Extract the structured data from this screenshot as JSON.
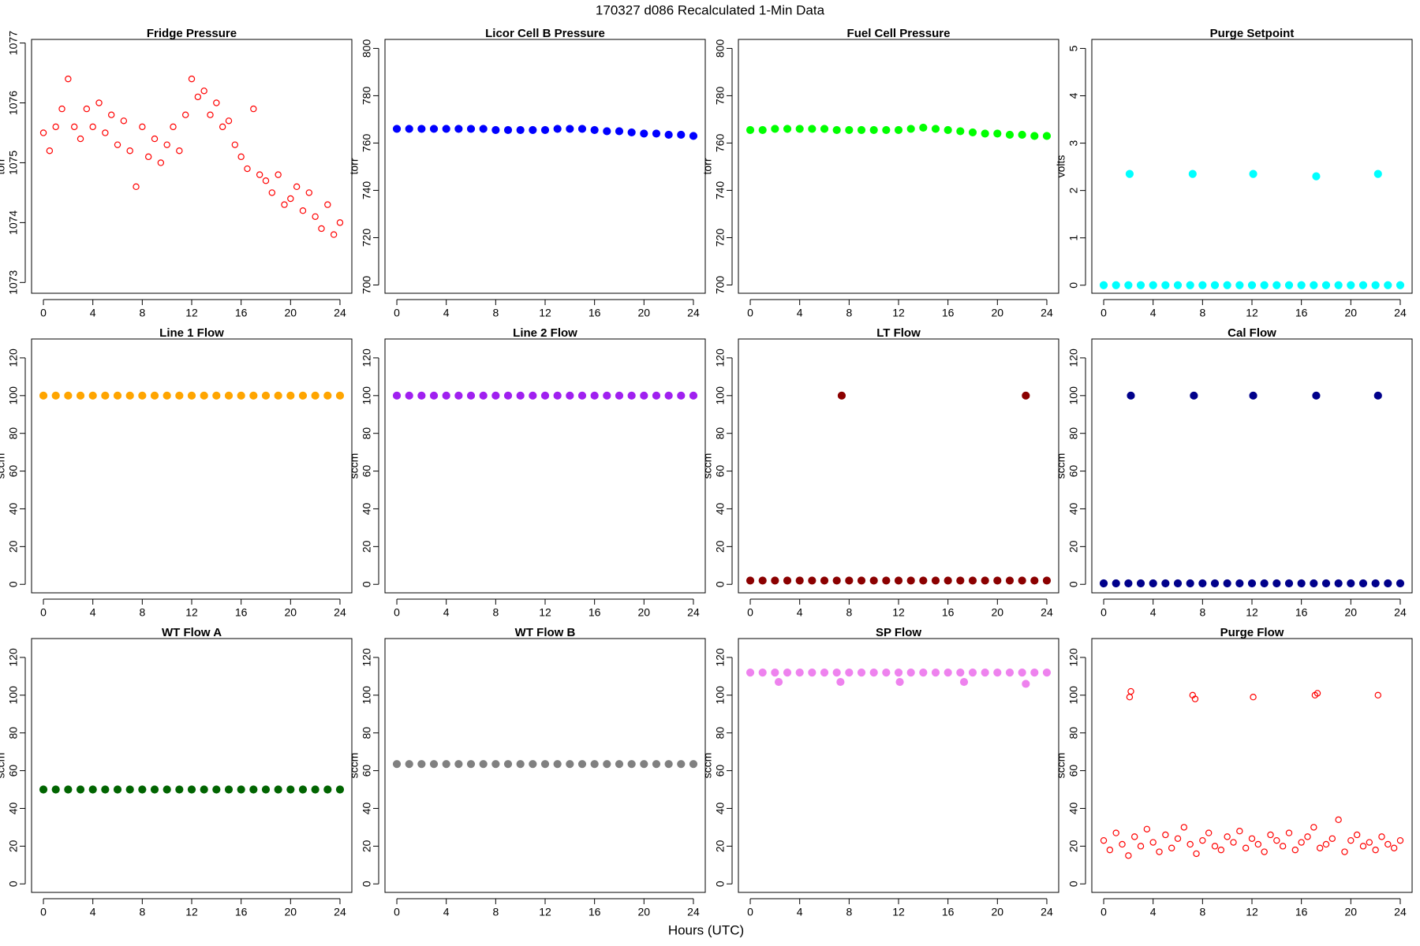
{
  "title": "170327   d086   Recalculated 1-Min Data",
  "xlabel": "Hours (UTC)",
  "chart_data": [
    {
      "type": "scatter",
      "title": "Fridge Pressure",
      "ylabel": "torr",
      "marker": "open",
      "color": "#ff0000",
      "x": [
        0,
        0.5,
        1,
        1.5,
        2,
        2.5,
        3,
        3.5,
        4,
        4.5,
        5,
        5.5,
        6,
        6.5,
        7,
        7.5,
        8,
        8.5,
        9,
        9.5,
        10,
        10.5,
        11,
        11.5,
        12,
        12.5,
        13,
        13.5,
        14,
        14.5,
        15,
        15.5,
        16,
        16.5,
        17,
        17.5,
        18,
        18.5,
        19,
        19.5,
        20,
        20.5,
        21,
        21.5,
        22,
        22.5,
        23,
        23.5,
        24
      ],
      "values": [
        1075.5,
        1075.2,
        1075.6,
        1075.9,
        1076.4,
        1075.6,
        1075.4,
        1075.9,
        1075.6,
        1076.0,
        1075.5,
        1075.8,
        1075.3,
        1075.7,
        1075.2,
        1074.6,
        1075.6,
        1075.1,
        1075.4,
        1075.0,
        1075.3,
        1075.6,
        1075.2,
        1075.8,
        1076.4,
        1076.1,
        1076.2,
        1075.8,
        1076.0,
        1075.6,
        1075.7,
        1075.3,
        1075.1,
        1074.9,
        1075.9,
        1074.8,
        1074.7,
        1074.5,
        1074.8,
        1074.3,
        1074.4,
        1074.6,
        1074.2,
        1074.5,
        1074.1,
        1073.9,
        1074.3,
        1073.8,
        1074.0
      ],
      "xlim": [
        -0.96,
        24.96
      ],
      "ylim": [
        1072.82,
        1077.06
      ],
      "xticks": [
        0,
        4,
        8,
        12,
        16,
        20,
        24
      ],
      "yticks": [
        1073,
        1074,
        1075,
        1076,
        1077
      ]
    },
    {
      "type": "scatter",
      "title": "Licor Cell B Pressure",
      "ylabel": "torr",
      "marker": "filled",
      "color": "#0000ff",
      "x": [
        0,
        1,
        2,
        3,
        4,
        5,
        6,
        7,
        8,
        9,
        10,
        11,
        12,
        13,
        14,
        15,
        16,
        17,
        18,
        19,
        20,
        21,
        22,
        23,
        24
      ],
      "values": [
        766,
        766,
        766,
        766,
        766,
        766,
        766,
        766,
        765.5,
        765.5,
        765.5,
        765.5,
        765.5,
        766,
        766,
        766,
        765.5,
        765,
        765,
        764.5,
        764,
        764,
        763.5,
        763.5,
        763
      ],
      "xlim": [
        -0.96,
        24.96
      ],
      "ylim": [
        696.5,
        803.8
      ],
      "xticks": [
        0,
        4,
        8,
        12,
        16,
        20,
        24
      ],
      "yticks": [
        700,
        720,
        740,
        760,
        780,
        800
      ]
    },
    {
      "type": "scatter",
      "title": "Fuel Cell Pressure",
      "ylabel": "torr",
      "marker": "filled",
      "color": "#00ff00",
      "x": [
        0,
        1,
        2,
        3,
        4,
        5,
        6,
        7,
        8,
        9,
        10,
        11,
        12,
        13,
        14,
        15,
        16,
        17,
        18,
        19,
        20,
        21,
        22,
        23,
        24
      ],
      "values": [
        765.5,
        765.5,
        766,
        766,
        766,
        766,
        766,
        765.5,
        765.5,
        765.5,
        765.5,
        765.5,
        765.5,
        766,
        766.5,
        766,
        765.5,
        765,
        764.5,
        764,
        764,
        763.5,
        763.5,
        763,
        763
      ],
      "xlim": [
        -0.96,
        24.96
      ],
      "ylim": [
        696.5,
        803.8
      ],
      "xticks": [
        0,
        4,
        8,
        12,
        16,
        20,
        24
      ],
      "yticks": [
        700,
        720,
        740,
        760,
        780,
        800
      ]
    },
    {
      "type": "scatter",
      "title": "Purge Setpoint",
      "ylabel": "volts",
      "marker": "filled",
      "color": "#00ffff",
      "x": [
        0,
        1,
        2,
        2.1,
        3,
        4,
        5,
        6,
        7,
        7.2,
        8,
        9,
        10,
        11,
        12,
        12.1,
        13,
        14,
        15,
        16,
        17,
        17.2,
        18,
        19,
        20,
        21,
        22,
        22.2,
        23,
        24
      ],
      "values": [
        0,
        0,
        0,
        2.35,
        0,
        0,
        0,
        0,
        0,
        2.35,
        0,
        0,
        0,
        0,
        0,
        2.35,
        0,
        0,
        0,
        0,
        0,
        2.3,
        0,
        0,
        0,
        0,
        0,
        2.35,
        0,
        0
      ],
      "xlim": [
        -0.96,
        24.96
      ],
      "ylim": [
        -0.17,
        5.19
      ],
      "xticks": [
        0,
        4,
        8,
        12,
        16,
        20,
        24
      ],
      "yticks": [
        0,
        1,
        2,
        3,
        4,
        5
      ]
    },
    {
      "type": "scatter",
      "title": "Line 1 Flow",
      "ylabel": "sccm",
      "marker": "filled",
      "color": "#ffa500",
      "x": [
        0,
        1,
        2,
        3,
        4,
        5,
        6,
        7,
        8,
        9,
        10,
        11,
        12,
        13,
        14,
        15,
        16,
        17,
        18,
        19,
        20,
        21,
        22,
        23,
        24
      ],
      "values": [
        100,
        100,
        100,
        100,
        100,
        100,
        100,
        100,
        100,
        100,
        100,
        100,
        100,
        100,
        100,
        100,
        100,
        100,
        100,
        100,
        100,
        100,
        100,
        100,
        100
      ],
      "xlim": [
        -0.96,
        24.96
      ],
      "ylim": [
        -4.5,
        130
      ],
      "xticks": [
        0,
        4,
        8,
        12,
        16,
        20,
        24
      ],
      "yticks": [
        0,
        20,
        40,
        60,
        80,
        100,
        120
      ]
    },
    {
      "type": "scatter",
      "title": "Line 2 Flow",
      "ylabel": "sccm",
      "marker": "filled",
      "color": "#a020f0",
      "x": [
        0,
        1,
        2,
        3,
        4,
        5,
        6,
        7,
        8,
        9,
        10,
        11,
        12,
        13,
        14,
        15,
        16,
        17,
        18,
        19,
        20,
        21,
        22,
        23,
        24
      ],
      "values": [
        100,
        100,
        100,
        100,
        100,
        100,
        100,
        100,
        100,
        100,
        100,
        100,
        100,
        100,
        100,
        100,
        100,
        100,
        100,
        100,
        100,
        100,
        100,
        100,
        100
      ],
      "xlim": [
        -0.96,
        24.96
      ],
      "ylim": [
        -4.5,
        130
      ],
      "xticks": [
        0,
        4,
        8,
        12,
        16,
        20,
        24
      ],
      "yticks": [
        0,
        20,
        40,
        60,
        80,
        100,
        120
      ]
    },
    {
      "type": "scatter",
      "title": "LT Flow",
      "ylabel": "sccm",
      "marker": "filled",
      "color": "#8b0000",
      "x": [
        0,
        1,
        2,
        3,
        4,
        5,
        6,
        7,
        7.4,
        8,
        9,
        10,
        11,
        12,
        13,
        14,
        15,
        16,
        17,
        18,
        19,
        20,
        21,
        22,
        22.3,
        23,
        24
      ],
      "values": [
        2,
        2,
        2,
        2,
        2,
        2,
        2,
        2,
        100,
        2,
        2,
        2,
        2,
        2,
        2,
        2,
        2,
        2,
        2,
        2,
        2,
        2,
        2,
        2,
        100,
        2,
        2
      ],
      "xlim": [
        -0.96,
        24.96
      ],
      "ylim": [
        -4.5,
        130
      ],
      "xticks": [
        0,
        4,
        8,
        12,
        16,
        20,
        24
      ],
      "yticks": [
        0,
        20,
        40,
        60,
        80,
        100,
        120
      ]
    },
    {
      "type": "scatter",
      "title": "Cal Flow",
      "ylabel": "sccm",
      "marker": "filled",
      "color": "#00008b",
      "x": [
        0,
        1,
        2,
        2.2,
        3,
        4,
        5,
        6,
        7,
        7.3,
        8,
        9,
        10,
        11,
        12,
        12.1,
        13,
        14,
        15,
        16,
        17,
        17.2,
        18,
        19,
        20,
        21,
        22,
        22.2,
        23,
        24
      ],
      "values": [
        0.5,
        0.5,
        0.5,
        100,
        0.5,
        0.5,
        0.5,
        0.5,
        0.5,
        100,
        0.5,
        0.5,
        0.5,
        0.5,
        0.5,
        100,
        0.5,
        0.5,
        0.5,
        0.5,
        0.5,
        100,
        0.5,
        0.5,
        0.5,
        0.5,
        0.5,
        100,
        0.5,
        0.5
      ],
      "xlim": [
        -0.96,
        24.96
      ],
      "ylim": [
        -4.5,
        130
      ],
      "xticks": [
        0,
        4,
        8,
        12,
        16,
        20,
        24
      ],
      "yticks": [
        0,
        20,
        40,
        60,
        80,
        100,
        120
      ]
    },
    {
      "type": "scatter",
      "title": "WT Flow A",
      "ylabel": "sccm",
      "marker": "filled",
      "color": "#006400",
      "x": [
        0,
        1,
        2,
        3,
        4,
        5,
        6,
        7,
        8,
        9,
        10,
        11,
        12,
        13,
        14,
        15,
        16,
        17,
        18,
        19,
        20,
        21,
        22,
        23,
        24
      ],
      "values": [
        50,
        50,
        50,
        50,
        50,
        50,
        50,
        50,
        50,
        50,
        50,
        50,
        50,
        50,
        50,
        50,
        50,
        50,
        50,
        50,
        50,
        50,
        50,
        50,
        50
      ],
      "xlim": [
        -0.96,
        24.96
      ],
      "ylim": [
        -4.5,
        130
      ],
      "xticks": [
        0,
        4,
        8,
        12,
        16,
        20,
        24
      ],
      "yticks": [
        0,
        20,
        40,
        60,
        80,
        100,
        120
      ]
    },
    {
      "type": "scatter",
      "title": "WT Flow B",
      "ylabel": "sccm",
      "marker": "filled",
      "color": "#808080",
      "x": [
        0,
        1,
        2,
        3,
        4,
        5,
        6,
        7,
        8,
        9,
        10,
        11,
        12,
        13,
        14,
        15,
        16,
        17,
        18,
        19,
        20,
        21,
        22,
        23,
        24
      ],
      "values": [
        63.5,
        63.5,
        63.5,
        63.5,
        63.5,
        63.5,
        63.5,
        63.5,
        63.5,
        63.5,
        63.5,
        63.5,
        63.5,
        63.5,
        63.5,
        63.5,
        63.5,
        63.5,
        63.5,
        63.5,
        63.5,
        63.5,
        63.5,
        63.5,
        63.5
      ],
      "xlim": [
        -0.96,
        24.96
      ],
      "ylim": [
        -4.5,
        130
      ],
      "xticks": [
        0,
        4,
        8,
        12,
        16,
        20,
        24
      ],
      "yticks": [
        0,
        20,
        40,
        60,
        80,
        100,
        120
      ]
    },
    {
      "type": "scatter",
      "title": "SP Flow",
      "ylabel": "sccm",
      "marker": "filled",
      "color": "#ee82ee",
      "x": [
        0,
        1,
        2,
        2.3,
        3,
        4,
        5,
        6,
        7,
        7.3,
        8,
        9,
        10,
        11,
        12,
        12.1,
        13,
        14,
        15,
        16,
        17,
        17.3,
        18,
        19,
        20,
        21,
        22,
        22.3,
        23,
        24
      ],
      "values": [
        112,
        112,
        112,
        107,
        112,
        112,
        112,
        112,
        112,
        107,
        112,
        112,
        112,
        112,
        112,
        107,
        112,
        112,
        112,
        112,
        112,
        107,
        112,
        112,
        112,
        112,
        112,
        106,
        112,
        112
      ],
      "xlim": [
        -0.96,
        24.96
      ],
      "ylim": [
        -4.5,
        130
      ],
      "xticks": [
        0,
        4,
        8,
        12,
        16,
        20,
        24
      ],
      "yticks": [
        0,
        20,
        40,
        60,
        80,
        100,
        120
      ]
    },
    {
      "type": "scatter",
      "title": "Purge Flow",
      "ylabel": "sccm",
      "marker": "open",
      "color": "#ff0000",
      "x": [
        0,
        0.5,
        1,
        1.5,
        2,
        2.5,
        3,
        3.5,
        4,
        4.5,
        5,
        5.5,
        6,
        6.5,
        7,
        7.5,
        8,
        8.5,
        9,
        9.5,
        10,
        10.5,
        11,
        11.5,
        12,
        12.5,
        13,
        13.5,
        14,
        14.5,
        15,
        15.5,
        16,
        16.5,
        17,
        17.5,
        18,
        18.5,
        19,
        19.5,
        20,
        20.5,
        21,
        21.5,
        22,
        22.5,
        23,
        23.5,
        24,
        2.1,
        2.2,
        7.2,
        7.4,
        12.1,
        17.1,
        17.3,
        22.2
      ],
      "values": [
        23,
        18,
        27,
        21,
        15,
        25,
        20,
        29,
        22,
        17,
        26,
        19,
        24,
        30,
        21,
        16,
        23,
        27,
        20,
        18,
        25,
        22,
        28,
        19,
        24,
        21,
        17,
        26,
        23,
        20,
        27,
        18,
        22,
        25,
        30,
        19,
        21,
        24,
        34,
        17,
        23,
        26,
        20,
        22,
        18,
        25,
        21,
        19,
        23,
        99,
        102,
        100,
        98,
        99,
        100,
        101,
        100
      ],
      "xlim": [
        -0.96,
        24.96
      ],
      "ylim": [
        -4.5,
        130
      ],
      "xticks": [
        0,
        4,
        8,
        12,
        16,
        20,
        24
      ],
      "yticks": [
        0,
        20,
        40,
        60,
        80,
        100,
        120
      ]
    }
  ]
}
